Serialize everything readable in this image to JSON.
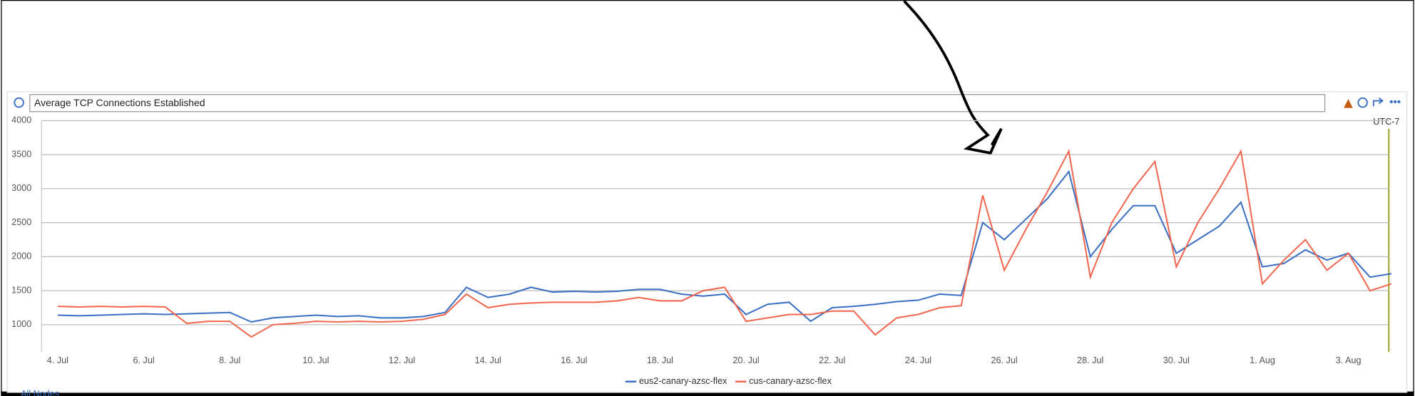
{
  "chart_data": {
    "type": "line",
    "title": "Average TCP Connections Established",
    "annotation": "UTC-7",
    "footer": "All Nodes",
    "categories": [
      "4. Jul",
      null,
      null,
      null,
      "6. Jul",
      null,
      null,
      null,
      "8. Jul",
      null,
      null,
      null,
      "10. Jul",
      null,
      null,
      null,
      "12. Jul",
      null,
      null,
      null,
      "14. Jul",
      null,
      null,
      null,
      "16. Jul",
      null,
      null,
      null,
      "18. Jul",
      null,
      null,
      null,
      "20. Jul",
      null,
      null,
      null,
      "22. Jul",
      null,
      null,
      null,
      "24. Jul",
      null,
      null,
      null,
      "26. Jul",
      null,
      null,
      null,
      "28. Jul",
      null,
      null,
      null,
      "30. Jul",
      null,
      null,
      null,
      "1. Aug",
      null,
      null,
      null,
      "3. Aug",
      null,
      null
    ],
    "series": [
      {
        "name": "eus2-canary-azsc-flex",
        "color": "#3a6fc4",
        "values": [
          1140,
          1130,
          1140,
          1150,
          1160,
          1150,
          1160,
          1170,
          1180,
          1040,
          1100,
          1120,
          1140,
          1120,
          1130,
          1100,
          1100,
          1120,
          1180,
          1550,
          1400,
          1450,
          1550,
          1480,
          1490,
          1480,
          1490,
          1520,
          1520,
          1450,
          1420,
          1450,
          1150,
          1300,
          1330,
          1050,
          1250,
          1270,
          1300,
          1340,
          1360,
          1450,
          1430,
          2500,
          2250,
          2550,
          2850,
          3250,
          2000,
          2400,
          2750,
          2750,
          2050,
          2250,
          2450,
          2800,
          1850,
          1900,
          2100,
          1950,
          2050,
          1700,
          1750
        ]
      },
      {
        "name": "cus-canary-azsc-flex",
        "color": "#f0664f",
        "values": [
          1270,
          1260,
          1270,
          1260,
          1270,
          1260,
          1020,
          1050,
          1050,
          820,
          1000,
          1020,
          1050,
          1040,
          1050,
          1040,
          1050,
          1080,
          1150,
          1450,
          1250,
          1300,
          1320,
          1330,
          1330,
          1330,
          1350,
          1400,
          1350,
          1350,
          1500,
          1550,
          1050,
          1100,
          1150,
          1150,
          1200,
          1200,
          850,
          1100,
          1150,
          1250,
          1280,
          2900,
          1800,
          2400,
          2950,
          3550,
          1700,
          2500,
          3000,
          3400,
          1850,
          2500,
          3000,
          3550,
          1600,
          1950,
          2250,
          1800,
          2050,
          1500,
          1600
        ]
      }
    ],
    "ylim": [
      600,
      4000
    ],
    "yticks": [
      1000,
      1500,
      2000,
      2500,
      3000,
      3500,
      4000
    ],
    "grid": true
  }
}
